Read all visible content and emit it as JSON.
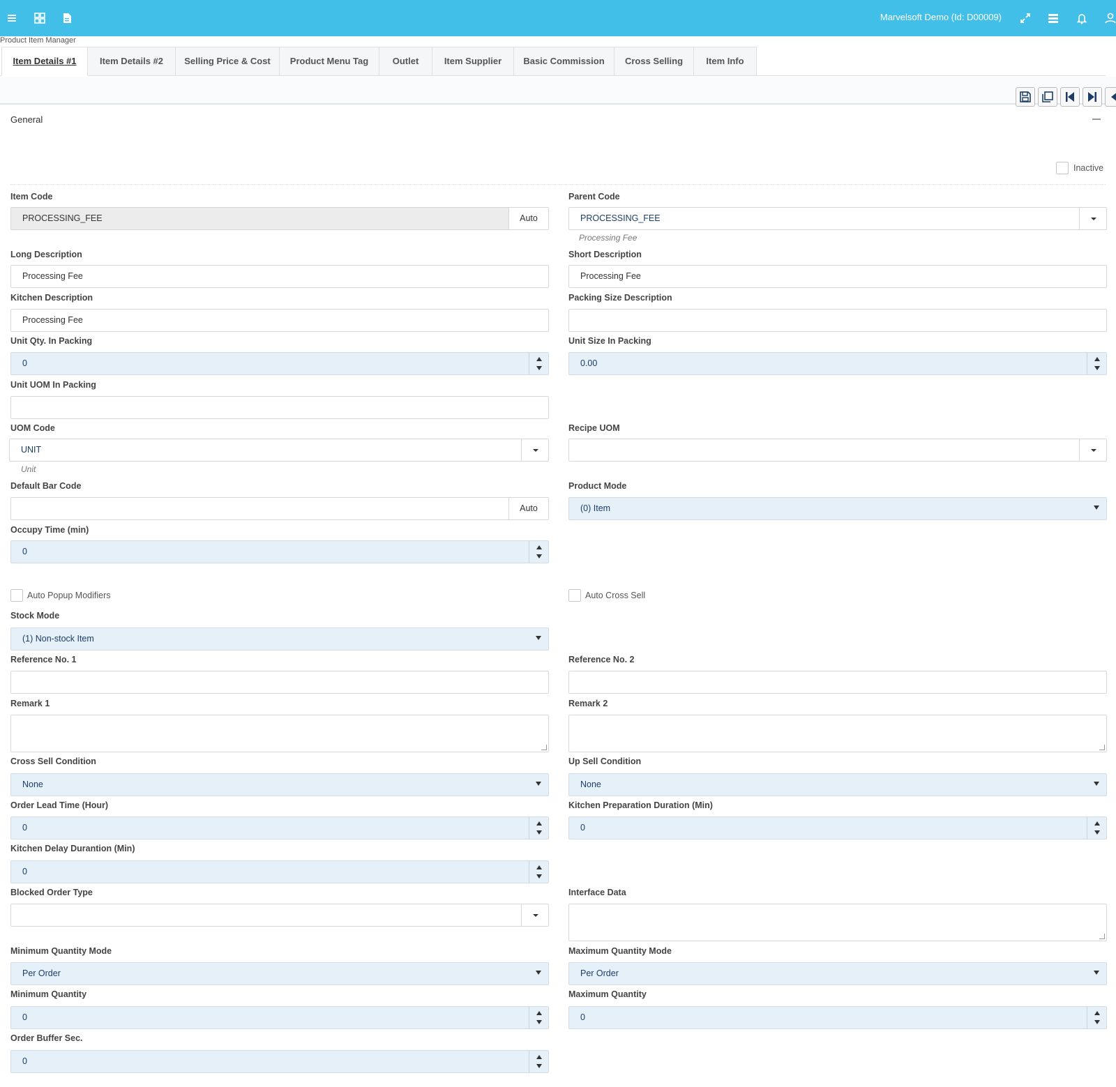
{
  "header": {
    "user_label": "Marvelsoft Demo (Id: D00009)",
    "icons": [
      "menu-icon",
      "grid-icon",
      "document-icon",
      "expand-icon",
      "list-icon",
      "bell-icon",
      "user-icon"
    ]
  },
  "breadcrumb": "Product Item Manager",
  "tabs": [
    {
      "label": "Item Details #1",
      "active": true
    },
    {
      "label": "Item Details #2"
    },
    {
      "label": "Selling Price & Cost"
    },
    {
      "label": "Product Menu Tag"
    },
    {
      "label": "Outlet"
    },
    {
      "label": "Item Supplier"
    },
    {
      "label": "Basic Commission"
    },
    {
      "label": "Cross Selling"
    },
    {
      "label": "Item Info"
    }
  ],
  "toolbar": {
    "buttons": [
      "save-icon",
      "save-copy-icon",
      "first-record-icon",
      "last-record-icon",
      "previous-icon"
    ]
  },
  "panel": {
    "title": "General",
    "inactive_label": "Inactive",
    "item_code": {
      "label": "Item Code",
      "value": "PROCESSING_FEE",
      "addon": "Auto"
    },
    "parent_code": {
      "label": "Parent Code",
      "value": "PROCESSING_FEE",
      "hint": "Processing Fee"
    },
    "long_description": {
      "label": "Long Description",
      "value": "Processing Fee"
    },
    "short_description": {
      "label": "Short Description",
      "value": "Processing Fee"
    },
    "kitchen_description": {
      "label": "Kitchen Description",
      "value": "Processing Fee"
    },
    "packing_size_description": {
      "label": "Packing Size Description",
      "value": ""
    },
    "unit_qty_in_packing": {
      "label": "Unit Qty. In Packing",
      "value": "0"
    },
    "unit_size_in_packing": {
      "label": "Unit Size In Packing",
      "value": "0.00"
    },
    "unit_uom_in_packing": {
      "label": "Unit UOM In Packing",
      "value": ""
    },
    "uom_code": {
      "label": "UOM Code",
      "value": "UNIT",
      "hint": "Unit"
    },
    "recipe_uom": {
      "label": "Recipe UOM",
      "value": ""
    },
    "default_bar_code": {
      "label": "Default Bar Code",
      "value": "",
      "addon": "Auto"
    },
    "product_mode": {
      "label": "Product Mode",
      "value": "(0) Item"
    },
    "occupy_time": {
      "label": "Occupy Time (min)",
      "value": "0"
    },
    "auto_popup_modifiers": {
      "label": "Auto Popup Modifiers",
      "checked": false
    },
    "auto_cross_sell": {
      "label": "Auto Cross Sell",
      "checked": false
    },
    "stock_mode": {
      "label": "Stock Mode",
      "value": "(1) Non-stock Item"
    },
    "reference_no_1": {
      "label": "Reference No. 1",
      "value": ""
    },
    "reference_no_2": {
      "label": "Reference No. 2",
      "value": ""
    },
    "remark_1": {
      "label": "Remark 1",
      "value": ""
    },
    "remark_2": {
      "label": "Remark 2",
      "value": ""
    },
    "cross_sell_condition": {
      "label": "Cross Sell Condition",
      "value": "None"
    },
    "up_sell_condition": {
      "label": "Up Sell Condition",
      "value": "None"
    },
    "order_lead_time": {
      "label": "Order Lead Time (Hour)",
      "value": "0"
    },
    "kitchen_preparation_duration": {
      "label": "Kitchen Preparation Duration (Min)",
      "value": "0"
    },
    "kitchen_delay_duration": {
      "label": "Kitchen Delay Durantion (Min)",
      "value": "0"
    },
    "blocked_order_type": {
      "label": "Blocked Order Type",
      "value": ""
    },
    "interface_data": {
      "label": "Interface Data",
      "value": ""
    },
    "minimum_quantity_mode": {
      "label": "Minimum Quantity Mode",
      "value": "Per Order"
    },
    "maximum_quantity_mode": {
      "label": "Maximum Quantity Mode",
      "value": "Per Order"
    },
    "minimum_quantity": {
      "label": "Minimum Quantity",
      "value": "0"
    },
    "maximum_quantity": {
      "label": "Maximum Quantity",
      "value": "0"
    },
    "order_buffer_sec": {
      "label": "Order Buffer Sec.",
      "value": "0"
    }
  },
  "colors": {
    "topbar": "#42bfe8",
    "field_blue": "#e5f0f8",
    "text_dark_blue": "#1d3d66"
  }
}
